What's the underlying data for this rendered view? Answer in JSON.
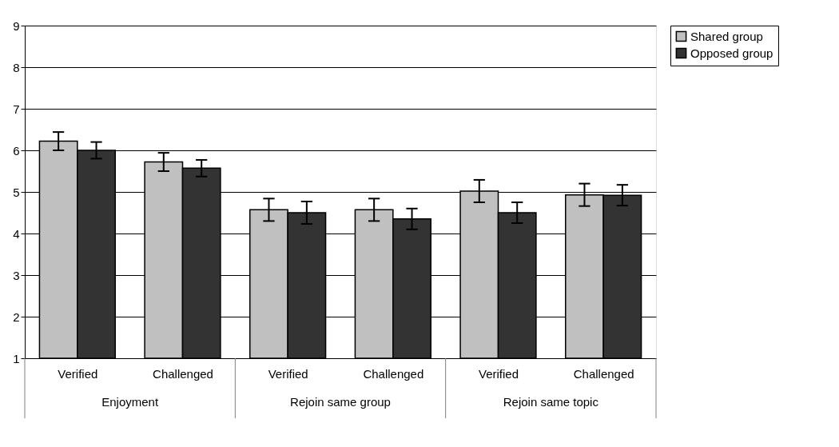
{
  "chart_data": {
    "type": "bar",
    "categories": [
      "Verified",
      "Challenged",
      "Verified",
      "Challenged",
      "Verified",
      "Challenged"
    ],
    "annotations": [
      "Enjoyment",
      "Rejoin same group",
      "Rejoin same topic"
    ],
    "series": [
      {
        "name": "Shared group",
        "color": "#c0c0c0",
        "values": [
          6.22,
          5.72,
          4.57,
          4.57,
          5.02,
          4.93
        ],
        "errors": [
          0.22,
          0.22,
          0.27,
          0.27,
          0.27,
          0.27
        ]
      },
      {
        "name": "Opposed group",
        "color": "#333333",
        "values": [
          6.0,
          5.57,
          4.5,
          4.35,
          4.5,
          4.92
        ],
        "errors": [
          0.2,
          0.2,
          0.27,
          0.25,
          0.25,
          0.25
        ]
      }
    ],
    "ylim": [
      1,
      9
    ],
    "yticks": [
      1,
      2,
      3,
      4,
      5,
      6,
      7,
      8,
      9
    ],
    "grid": "y",
    "legend": "right"
  }
}
